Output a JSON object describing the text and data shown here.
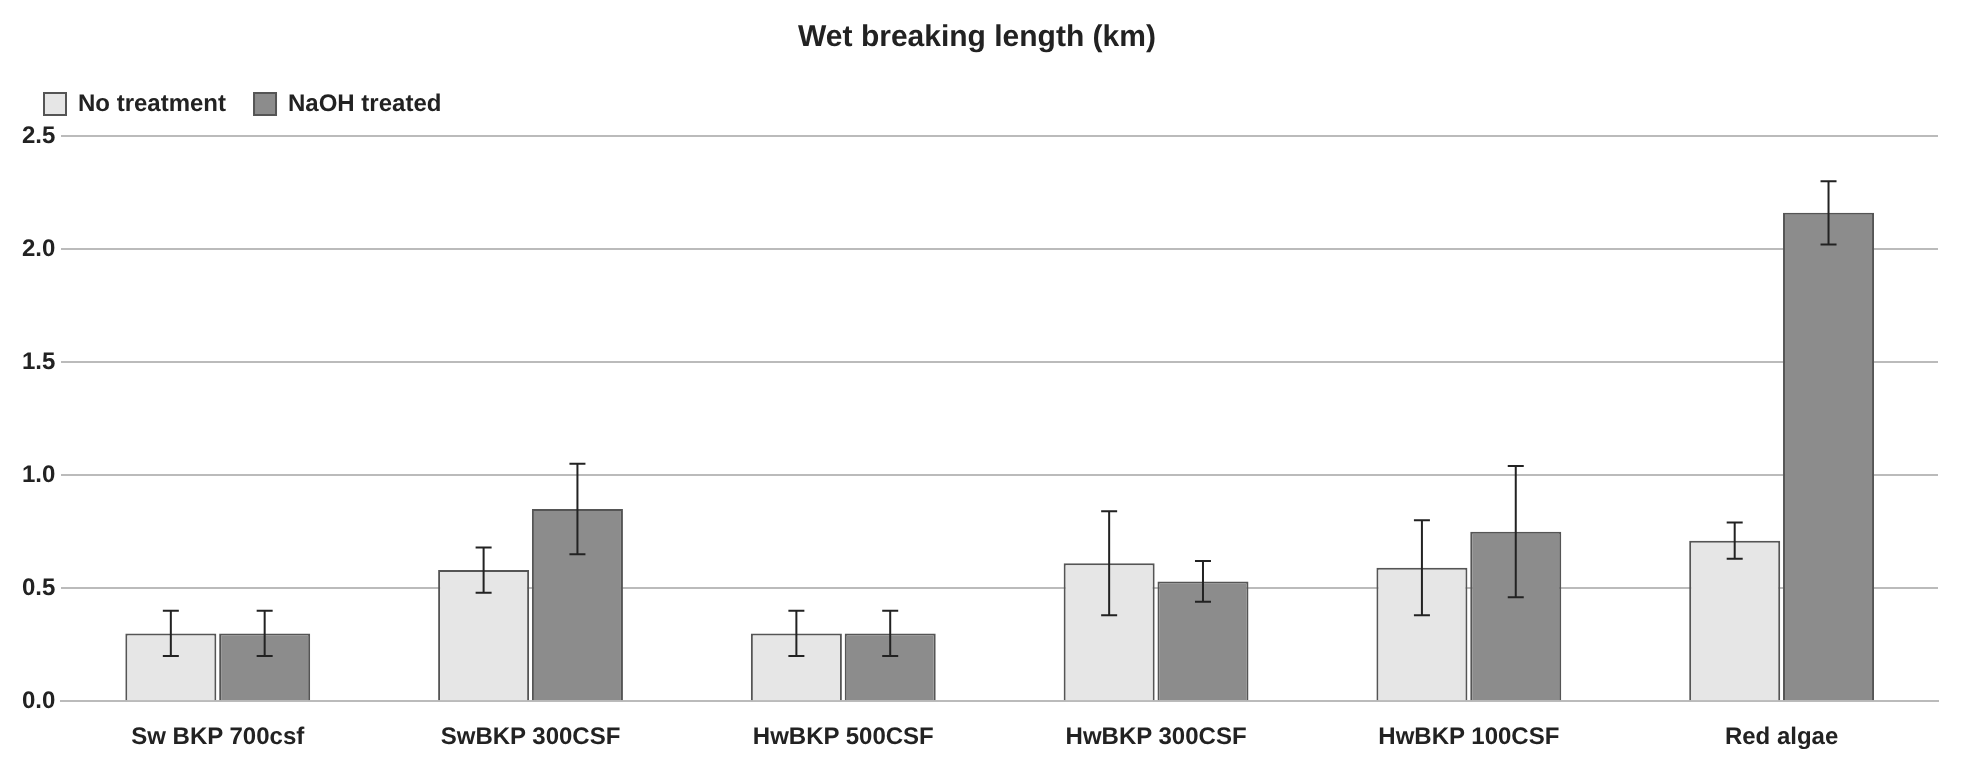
{
  "chart_data": {
    "type": "bar",
    "title": "Wet breaking length (km)",
    "categories": [
      "Sw BKP 700csf",
      "SwBKP 300CSF",
      "HwBKP 500CSF",
      "HwBKP 300CSF",
      "HwBKP 100CSF",
      "Red algae"
    ],
    "series": [
      {
        "name": "No treatment",
        "color": "#e6e6e6",
        "values": [
          0.3,
          0.58,
          0.3,
          0.61,
          0.59,
          0.71
        ],
        "errors": [
          0.1,
          0.1,
          0.1,
          0.23,
          0.21,
          0.08
        ]
      },
      {
        "name": "NaOH treated",
        "color": "#8c8c8c",
        "values": [
          0.3,
          0.85,
          0.3,
          0.53,
          0.75,
          2.16
        ],
        "errors": [
          0.1,
          0.2,
          0.1,
          0.09,
          0.29,
          0.14
        ]
      }
    ],
    "ylim": [
      0,
      2.5
    ],
    "yticks": [
      {
        "value": 0,
        "label": "0.0"
      },
      0.5,
      {
        "value": 1,
        "label": "1.0"
      },
      1.5,
      {
        "value": 2,
        "label": "2.0"
      },
      2.5
    ],
    "grid": "y",
    "legend": "top left"
  }
}
